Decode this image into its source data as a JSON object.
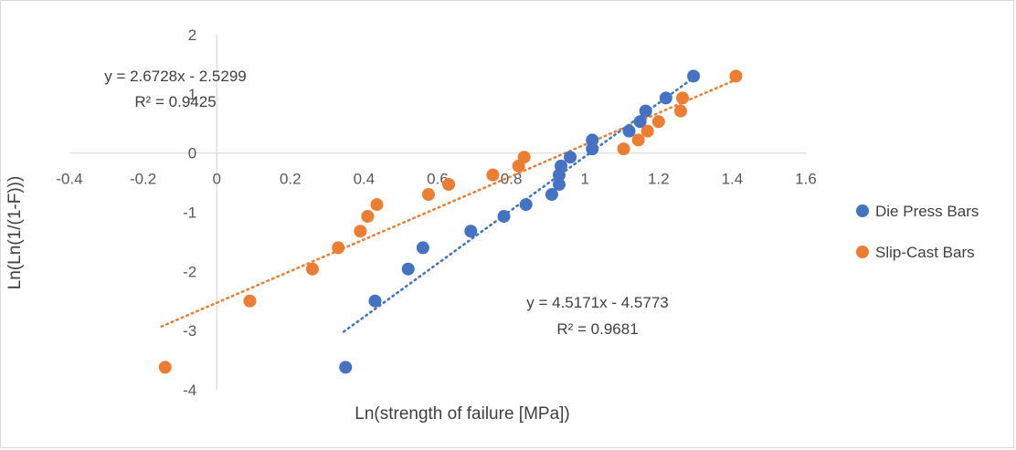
{
  "chart_data": {
    "type": "scatter",
    "xlabel": "Ln(strength of failure [MPa])",
    "ylabel": "Ln(Ln(1/(1-F)))",
    "xlim": [
      -0.4,
      1.6
    ],
    "ylim": [
      -4,
      2
    ],
    "xticks": [
      -0.4,
      -0.2,
      0,
      0.2,
      0.4,
      0.6,
      0.8,
      1,
      1.2,
      1.4,
      1.6
    ],
    "yticks": [
      -4,
      -3,
      -2,
      -1,
      0,
      1,
      2
    ],
    "xtick_labels": [
      "-0.4",
      "-0.2",
      "0",
      "0.2",
      "0.4",
      "0.6",
      "0.8",
      "1",
      "1.2",
      "1.4",
      "1.6"
    ],
    "ytick_labels": [
      "-4",
      "-3",
      "-2",
      "-1",
      "0",
      "1",
      "2"
    ],
    "grid": false,
    "legend_position": "right",
    "series": [
      {
        "name": "Die Press Bars",
        "color": "#4472C4",
        "points": [
          [
            0.35,
            -3.62
          ],
          [
            0.43,
            -2.5
          ],
          [
            0.52,
            -1.96
          ],
          [
            0.56,
            -1.6
          ],
          [
            0.69,
            -1.32
          ],
          [
            0.78,
            -1.07
          ],
          [
            0.84,
            -0.87
          ],
          [
            0.91,
            -0.7
          ],
          [
            0.93,
            -0.53
          ],
          [
            0.93,
            -0.37
          ],
          [
            0.935,
            -0.22
          ],
          [
            0.96,
            -0.07
          ],
          [
            1.02,
            0.07
          ],
          [
            1.02,
            0.22
          ],
          [
            1.12,
            0.37
          ],
          [
            1.15,
            0.53
          ],
          [
            1.165,
            0.71
          ],
          [
            1.22,
            0.93
          ],
          [
            1.295,
            1.3
          ]
        ],
        "trendline": {
          "equation": "y = 4.5171x - 4.5773",
          "r2": "R² = 0.9681",
          "slope": 4.5171,
          "intercept": -4.5773,
          "x_range": [
            0.345,
            1.3
          ]
        }
      },
      {
        "name": "Slip-Cast Bars",
        "color": "#ED7D31",
        "points": [
          [
            -0.14,
            -3.62
          ],
          [
            0.09,
            -2.5
          ],
          [
            0.26,
            -1.96
          ],
          [
            0.33,
            -1.6
          ],
          [
            0.39,
            -1.32
          ],
          [
            0.41,
            -1.07
          ],
          [
            0.435,
            -0.87
          ],
          [
            0.575,
            -0.7
          ],
          [
            0.63,
            -0.53
          ],
          [
            0.75,
            -0.37
          ],
          [
            0.82,
            -0.22
          ],
          [
            0.835,
            -0.07
          ],
          [
            1.105,
            0.07
          ],
          [
            1.145,
            0.22
          ],
          [
            1.17,
            0.37
          ],
          [
            1.2,
            0.53
          ],
          [
            1.26,
            0.71
          ],
          [
            1.265,
            0.93
          ],
          [
            1.41,
            1.3
          ]
        ],
        "trendline": {
          "equation": "y = 2.6728x - 2.5299",
          "r2": "R² = 0.9425",
          "slope": 2.6728,
          "intercept": -2.5299,
          "x_range": [
            -0.15,
            1.41
          ]
        }
      }
    ]
  }
}
